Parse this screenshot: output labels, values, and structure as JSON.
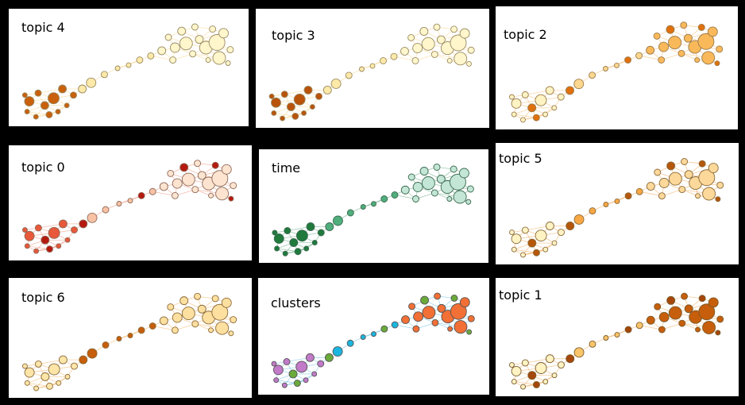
{
  "panels": [
    {
      "id": "topic4",
      "label": "topic 4",
      "colors": {
        "left": "#c8600c",
        "mid": "#fde9a8",
        "right": "#fff6cc",
        "edge": "#f3c55a",
        "stroke": "#9a8a62"
      }
    },
    {
      "id": "topic3",
      "label": "topic 3",
      "colors": {
        "left": "#b9530a",
        "mid": "#fde9a8",
        "right": "#fff6cc",
        "edge": "#f3c55a",
        "stroke": "#9a8a62"
      }
    },
    {
      "id": "topic2",
      "label": "topic 2",
      "colors": {
        "left": "#fff3c4",
        "mid": "#fcd78f",
        "right": "#f9b95a",
        "edge": "#f2a23a",
        "stroke": "#9a7a4a",
        "accent": "#e0700e"
      }
    },
    {
      "id": "topic0",
      "label": "topic 0",
      "colors": {
        "left": "#e8583a",
        "mid": "#f9c2a4",
        "right": "#fde4d0",
        "edge": "#e86a4a",
        "stroke": "#8e6a58",
        "accent": "#b5190f"
      }
    },
    {
      "id": "time",
      "label": "time",
      "colors": {
        "left": "#1f7a3c",
        "mid": "#4fae7c",
        "right": "#c3e6d6",
        "edge": "#2e8b57",
        "stroke": "#3d6b52"
      }
    },
    {
      "id": "topic5",
      "label": "topic 5",
      "colors": {
        "left": "#fff3c4",
        "mid": "#f7a744",
        "right": "#fcd99a",
        "edge": "#f08a1a",
        "stroke": "#8a6a3a",
        "accent": "#b5560a"
      }
    },
    {
      "id": "topic6",
      "label": "topic 6",
      "colors": {
        "left": "#fde5a8",
        "mid": "#c65e0c",
        "right": "#fde0a0",
        "edge": "#f09a2a",
        "stroke": "#8a6a3a"
      }
    },
    {
      "id": "clusters",
      "label": "clusters",
      "colors": {
        "left": "#c27ac9",
        "mid": "#1ab6df",
        "right": "#f26f35",
        "edge": "#3aa8d8",
        "stroke": "#555555",
        "accent": "#6aaa3a"
      }
    },
    {
      "id": "topic1",
      "label": "topic 1",
      "colors": {
        "left": "#fff3c4",
        "mid": "#f9c56a",
        "right": "#c65e0c",
        "edge": "#e8902a",
        "stroke": "#7a5a2a",
        "accent": "#a5470a"
      }
    }
  ]
}
